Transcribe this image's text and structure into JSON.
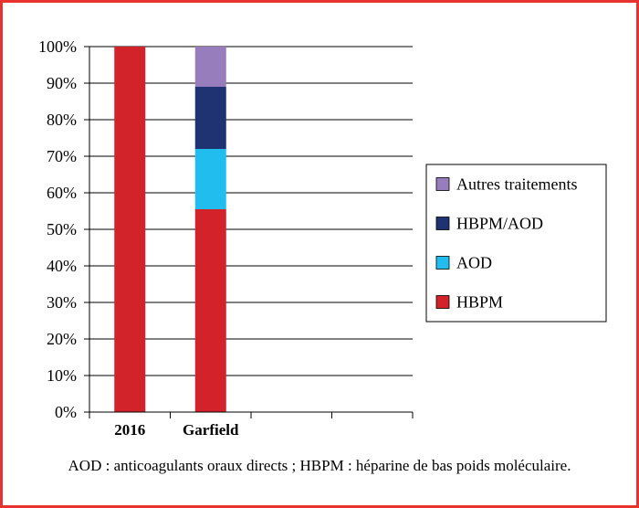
{
  "chart_data": {
    "type": "bar",
    "stacked": true,
    "percent": true,
    "categories": [
      "2016",
      "Garfield"
    ],
    "series": [
      {
        "name": "HBPM",
        "values": [
          100,
          55.5
        ],
        "color": "#d3232a"
      },
      {
        "name": "AOD",
        "values": [
          0,
          16.5
        ],
        "color": "#20bdee"
      },
      {
        "name": "HBPM/AOD",
        "values": [
          0,
          17
        ],
        "color": "#1f3271"
      },
      {
        "name": "Autres traitements",
        "values": [
          0,
          11
        ],
        "color": "#977dbb"
      }
    ],
    "yticks": [
      "0%",
      "10%",
      "20%",
      "30%",
      "40%",
      "50%",
      "60%",
      "70%",
      "80%",
      "90%",
      "100%"
    ],
    "ylim": [
      0,
      100
    ],
    "grid": true,
    "legend_position": "right",
    "title": "",
    "xlabel": "",
    "ylabel": ""
  },
  "caption": "AOD : anticoagulants oraux directs ; HBPM : héparine de bas poids moléculaire."
}
